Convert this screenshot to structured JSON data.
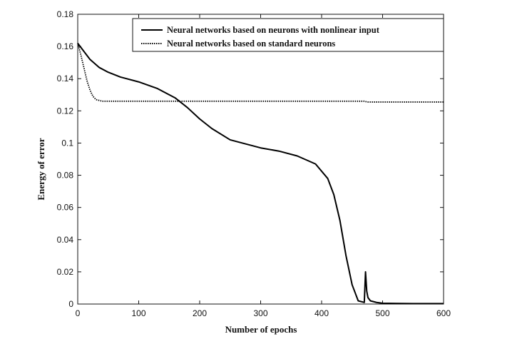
{
  "chart_data": {
    "type": "line",
    "xlabel": "Number of epochs",
    "ylabel": "Energy of error",
    "xlim": [
      0,
      600
    ],
    "ylim": [
      0,
      0.18
    ],
    "xticks": [
      "0",
      "100",
      "200",
      "300",
      "400",
      "500",
      "600"
    ],
    "yticks": [
      "0",
      "0.02",
      "0.04",
      "0.06",
      "0.08",
      "0.1",
      "0.12",
      "0.14",
      "0.16",
      "0.18"
    ],
    "grid": false,
    "legend_position": "top-right",
    "series": [
      {
        "name": "Neural networks based on neurons with nonlinear input",
        "style": "solid",
        "color": "#000000",
        "x": [
          0,
          10,
          20,
          35,
          50,
          70,
          100,
          130,
          160,
          180,
          200,
          220,
          250,
          280,
          300,
          330,
          360,
          390,
          410,
          420,
          430,
          440,
          450,
          460,
          470,
          472,
          474,
          476,
          480,
          490,
          500,
          520,
          550,
          600
        ],
        "y": [
          0.162,
          0.157,
          0.152,
          0.147,
          0.144,
          0.141,
          0.138,
          0.134,
          0.128,
          0.122,
          0.115,
          0.109,
          0.102,
          0.099,
          0.097,
          0.095,
          0.092,
          0.087,
          0.078,
          0.068,
          0.052,
          0.03,
          0.012,
          0.002,
          0.001,
          0.02,
          0.008,
          0.004,
          0.002,
          0.001,
          0.0005,
          0.0004,
          0.0003,
          0.0003
        ]
      },
      {
        "name": "Neural networks based on standard neurons",
        "style": "dotted",
        "color": "#000000",
        "x": [
          0,
          5,
          10,
          15,
          20,
          25,
          30,
          35,
          40,
          50,
          100,
          200,
          300,
          400,
          470,
          475,
          500,
          600
        ],
        "y": [
          0.162,
          0.155,
          0.147,
          0.139,
          0.133,
          0.129,
          0.127,
          0.1265,
          0.126,
          0.126,
          0.126,
          0.126,
          0.126,
          0.126,
          0.126,
          0.1255,
          0.1255,
          0.1255
        ]
      }
    ]
  }
}
